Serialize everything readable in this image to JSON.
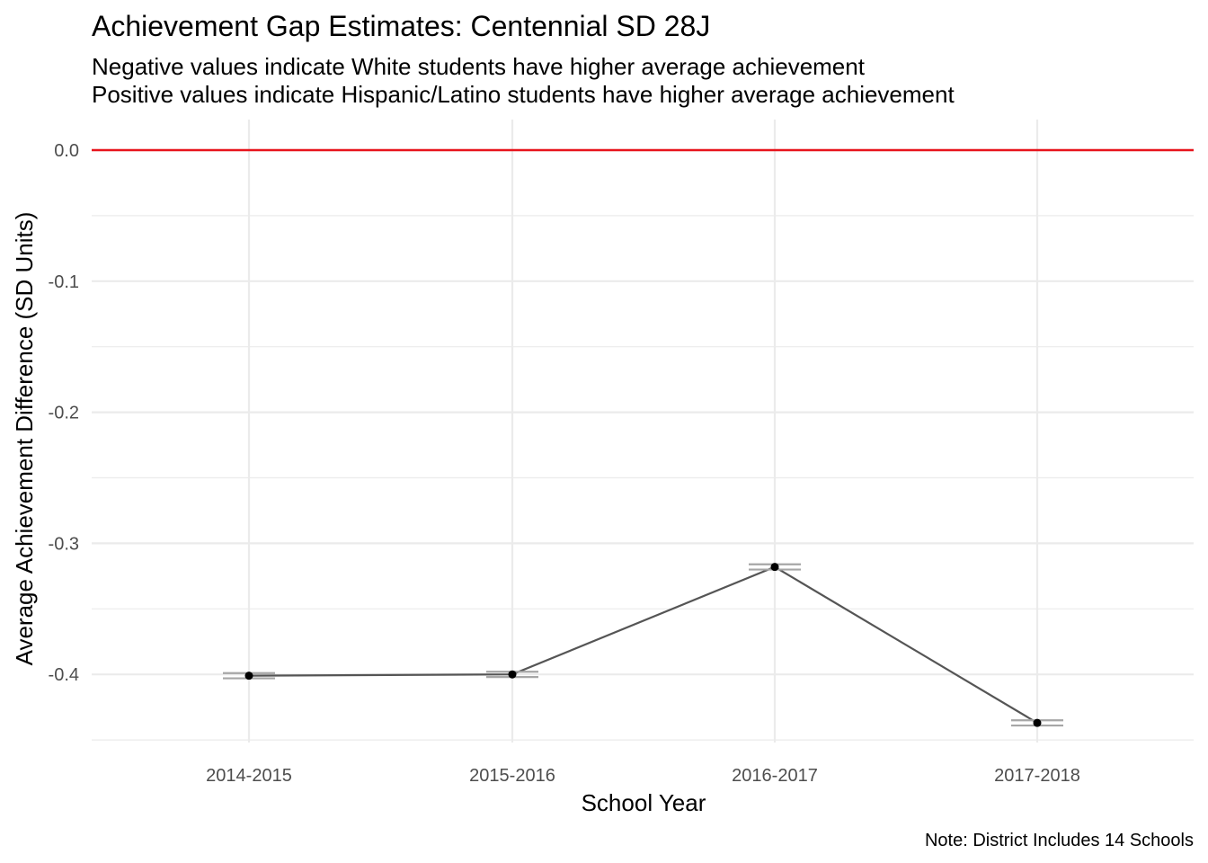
{
  "chart_data": {
    "type": "line",
    "title": "Achievement Gap Estimates: Centennial SD 28J",
    "subtitle": [
      "Negative values indicate White students have higher average achievement",
      "Positive values indicate Hispanic/Latino students have higher average achievement"
    ],
    "xlabel": "School Year",
    "ylabel": "Average Achievement Difference (SD Units)",
    "caption": "Note: District Includes 14 Schools",
    "categories": [
      "2014-2015",
      "2015-2016",
      "2016-2017",
      "2017-2018"
    ],
    "values": [
      -0.401,
      -0.4,
      -0.318,
      -0.437
    ],
    "error_bars": [
      {
        "lower": -0.403,
        "upper": -0.399
      },
      {
        "lower": -0.402,
        "upper": -0.398
      },
      {
        "lower": -0.32,
        "upper": -0.316
      },
      {
        "lower": -0.439,
        "upper": -0.435
      }
    ],
    "reference_line": {
      "y": 0.0,
      "color": "#e8141c"
    },
    "yticks": [
      0.0,
      -0.1,
      -0.2,
      -0.3,
      -0.4
    ],
    "ytick_labels": [
      "0.0",
      "-0.1",
      "-0.2",
      "-0.3",
      "-0.4"
    ],
    "ylim": [
      -0.45,
      0.0
    ],
    "grid": true,
    "colors": {
      "line": "#555555",
      "point": "#000000",
      "error_bar": "#a6a6a6",
      "grid": "#ebebeb"
    }
  }
}
